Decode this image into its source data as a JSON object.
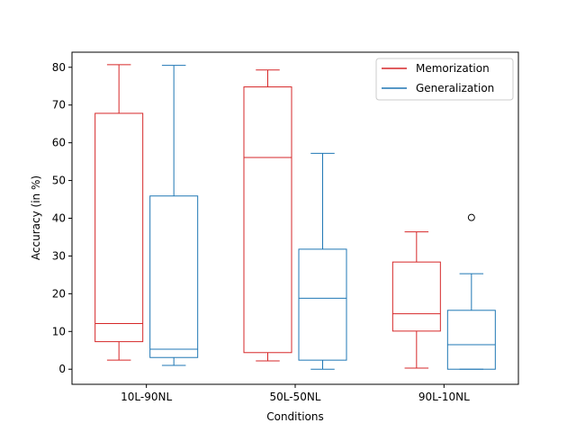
{
  "chart_data": {
    "type": "box",
    "xlabel": "Conditions",
    "ylabel": "Accuracy (in %)",
    "ylim": [
      -4,
      84
    ],
    "yticks": [
      0,
      10,
      20,
      30,
      40,
      50,
      60,
      70,
      80
    ],
    "categories": [
      "10L-90NL",
      "50L-50NL",
      "90L-10NL"
    ],
    "legend": {
      "placement": "top-right"
    },
    "series": [
      {
        "name": "Memorization",
        "color": "#d62728",
        "boxes": [
          {
            "whisker_low": 2.4,
            "q1": 7.3,
            "median": 12.1,
            "q3": 67.8,
            "whisker_high": 80.7,
            "outliers": []
          },
          {
            "whisker_low": 2.2,
            "q1": 4.4,
            "median": 56.1,
            "q3": 74.8,
            "whisker_high": 79.3,
            "outliers": []
          },
          {
            "whisker_low": 0.3,
            "q1": 10.1,
            "median": 14.7,
            "q3": 28.4,
            "whisker_high": 36.4,
            "outliers": []
          }
        ]
      },
      {
        "name": "Generalization",
        "color": "#1f77b4",
        "boxes": [
          {
            "whisker_low": 1.0,
            "q1": 3.1,
            "median": 5.3,
            "q3": 45.9,
            "whisker_high": 80.5,
            "outliers": []
          },
          {
            "whisker_low": 0.0,
            "q1": 2.4,
            "median": 18.8,
            "q3": 31.8,
            "whisker_high": 57.2,
            "outliers": []
          },
          {
            "whisker_low": 0.0,
            "q1": 0.0,
            "median": 6.5,
            "q3": 15.6,
            "whisker_high": 25.3,
            "outliers": [
              40.2
            ]
          }
        ]
      }
    ]
  }
}
